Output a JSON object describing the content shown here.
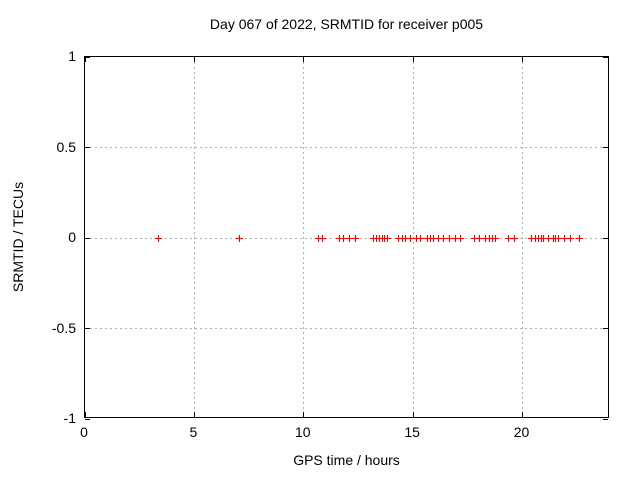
{
  "window": {
    "kind": "gnuplot-chart-image",
    "background": "#ffffff"
  },
  "colors": {
    "marker": "#ff0000",
    "axis": "#000000",
    "grid": "#b0b0b0",
    "text": "#000000"
  },
  "chart_data": {
    "type": "scatter",
    "title": "Day 067 of 2022, SRMTID for receiver p005",
    "xlabel": "GPS time / hours",
    "ylabel": "SRMTID / TECUs",
    "xlim": [
      0,
      24
    ],
    "ylim": [
      -1,
      1
    ],
    "xticks": [
      0,
      5,
      10,
      15,
      20
    ],
    "xtick_labels": [
      "0",
      "5",
      "10",
      "15",
      "20"
    ],
    "yticks": [
      -1,
      -0.5,
      0,
      0.5,
      1
    ],
    "ytick_labels": [
      "-1",
      "-0.5",
      "0",
      "0.5",
      "1"
    ],
    "grid": true,
    "legend": "none",
    "marker": "plus",
    "marker_color": "#ff0000",
    "series": [
      {
        "name": "SRMTID",
        "points": [
          [
            3.34,
            0
          ],
          [
            7.05,
            0
          ],
          [
            10.68,
            0
          ],
          [
            10.85,
            0
          ],
          [
            11.65,
            0
          ],
          [
            11.82,
            0
          ],
          [
            12.1,
            0
          ],
          [
            12.35,
            0
          ],
          [
            13.17,
            0
          ],
          [
            13.34,
            0
          ],
          [
            13.47,
            0
          ],
          [
            13.58,
            0
          ],
          [
            13.7,
            0
          ],
          [
            13.85,
            0
          ],
          [
            14.35,
            0
          ],
          [
            14.5,
            0
          ],
          [
            14.65,
            0
          ],
          [
            14.88,
            0
          ],
          [
            15.15,
            0
          ],
          [
            15.32,
            0
          ],
          [
            15.65,
            0
          ],
          [
            15.78,
            0
          ],
          [
            15.92,
            0
          ],
          [
            16.15,
            0
          ],
          [
            16.4,
            0
          ],
          [
            16.65,
            0
          ],
          [
            16.92,
            0
          ],
          [
            17.15,
            0
          ],
          [
            17.8,
            0
          ],
          [
            18.03,
            0
          ],
          [
            18.3,
            0
          ],
          [
            18.5,
            0
          ],
          [
            18.65,
            0
          ],
          [
            18.75,
            0
          ],
          [
            19.38,
            0
          ],
          [
            19.62,
            0
          ],
          [
            20.42,
            0
          ],
          [
            20.58,
            0
          ],
          [
            20.72,
            0
          ],
          [
            20.85,
            0
          ],
          [
            20.98,
            0
          ],
          [
            21.2,
            0
          ],
          [
            21.4,
            0
          ],
          [
            21.52,
            0
          ],
          [
            21.63,
            0
          ],
          [
            21.9,
            0
          ],
          [
            22.2,
            0
          ],
          [
            22.62,
            0
          ]
        ]
      }
    ]
  }
}
